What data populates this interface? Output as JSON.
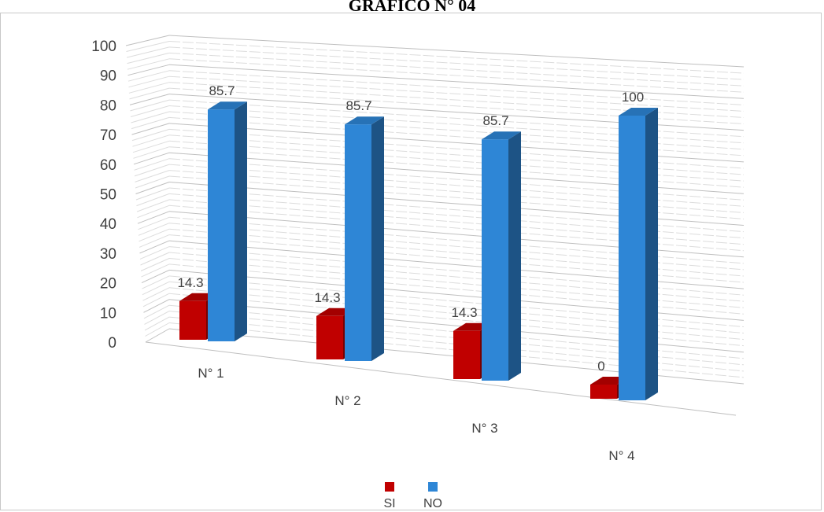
{
  "chart_data": {
    "type": "bar",
    "title": "GRAFICO N° 04",
    "categories": [
      "N° 1",
      "N° 2",
      "N° 3",
      "N° 4"
    ],
    "series": [
      {
        "name": "SI",
        "values": [
          14.3,
          14.3,
          14.3,
          0
        ],
        "color": "#c00000"
      },
      {
        "name": "NO",
        "values": [
          85.7,
          85.7,
          85.7,
          100
        ],
        "color": "#2e86d6"
      }
    ],
    "ylim": [
      0,
      100
    ],
    "yticks": [
      0,
      10,
      20,
      30,
      40,
      50,
      60,
      70,
      80,
      90,
      100
    ],
    "grid": true,
    "legend": "bottom",
    "style": "3d-column"
  }
}
